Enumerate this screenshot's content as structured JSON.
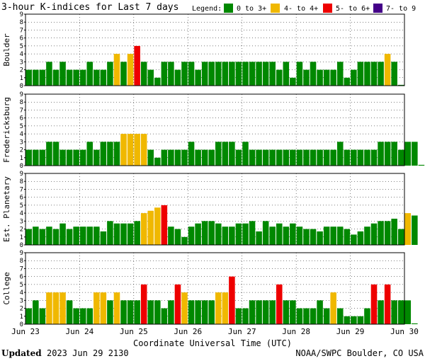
{
  "chart_data": {
    "type": "bar",
    "title": "3-hour K-indices for Last 7 days",
    "legend": {
      "label": "Legend:",
      "entries": [
        {
          "name": "0 to 3+",
          "color": "#008800"
        },
        {
          "name": "4- to 4+",
          "color": "#f0b800"
        },
        {
          "name": "5- to 6+",
          "color": "#ee0000"
        },
        {
          "name": "7- to 9",
          "color": "#440088"
        }
      ]
    },
    "xlabel": "Coordinate Universal Time (UTC)",
    "x_ticks": [
      "Jun 23",
      "Jun 24",
      "Jun 25",
      "Jun 26",
      "Jun 27",
      "Jun 28",
      "Jun 29",
      "Jun 30"
    ],
    "ylim": [
      0,
      9
    ],
    "y_ticks": [
      "0",
      "1",
      "2",
      "3",
      "4",
      "5",
      "6",
      "7",
      "8",
      "9"
    ],
    "grid": "dotted horizontal and vertical",
    "panels": [
      {
        "name": "Boulder",
        "values": [
          2,
          2,
          2,
          3,
          2,
          3,
          2,
          2,
          2,
          3,
          2,
          2,
          3,
          4,
          3,
          4,
          5,
          3,
          2,
          1,
          3,
          3,
          2,
          3,
          3,
          2,
          3,
          3,
          3,
          3,
          3,
          3,
          3,
          3,
          3,
          3,
          3,
          2,
          3,
          1,
          3,
          2,
          3,
          2,
          2,
          2,
          3,
          1,
          2,
          3,
          3,
          3,
          3,
          4,
          3,
          0.1
        ]
      },
      {
        "name": "Fredericksburg",
        "values": [
          2,
          2,
          2,
          3,
          3,
          2,
          2,
          2,
          2,
          3,
          2,
          3,
          3,
          3,
          4,
          4,
          4,
          4,
          2,
          1,
          2,
          2,
          2,
          2,
          3,
          2,
          2,
          2,
          3,
          3,
          3,
          2,
          3,
          2,
          2,
          2,
          2,
          2,
          2,
          2,
          2,
          2,
          2,
          2,
          2,
          2,
          3,
          2,
          2,
          2,
          2,
          2,
          3,
          3,
          3,
          2,
          3,
          3,
          0.1
        ]
      },
      {
        "name": "Est. Planetary",
        "values": [
          2,
          2.3,
          2,
          2.3,
          2,
          2.7,
          2,
          2.3,
          2.3,
          2.3,
          2.3,
          1.7,
          3,
          2.7,
          2.7,
          2.7,
          3,
          4,
          4.3,
          4.7,
          5,
          2.3,
          2,
          1,
          2.3,
          2.7,
          3,
          3,
          2.7,
          2.3,
          2.3,
          2.7,
          2.7,
          3,
          1.7,
          3,
          2.3,
          2.7,
          2.3,
          2.7,
          2.3,
          2,
          2,
          1.7,
          2.3,
          2.3,
          2.3,
          2,
          1.3,
          1.7,
          2.3,
          2.7,
          3,
          3,
          3.3,
          2,
          4,
          3.7
        ]
      },
      {
        "name": "College",
        "values": [
          2,
          3,
          2,
          4,
          4,
          4,
          3,
          2,
          2,
          2,
          4,
          4,
          3,
          4,
          3,
          3,
          3,
          5,
          3,
          3,
          2,
          3,
          5,
          4,
          3,
          3,
          3,
          3,
          4,
          4,
          6,
          2,
          2,
          3,
          3,
          3,
          3,
          5,
          3,
          3,
          2,
          2,
          2,
          3,
          2,
          4,
          2,
          1,
          1,
          1,
          2,
          5,
          3,
          5,
          3,
          3,
          3,
          0.1
        ]
      }
    ],
    "footer": {
      "updated_label": "Updated",
      "updated_value": "2023 Jun 29 2130",
      "source": "NOAA/SWPC Boulder, CO USA"
    }
  }
}
